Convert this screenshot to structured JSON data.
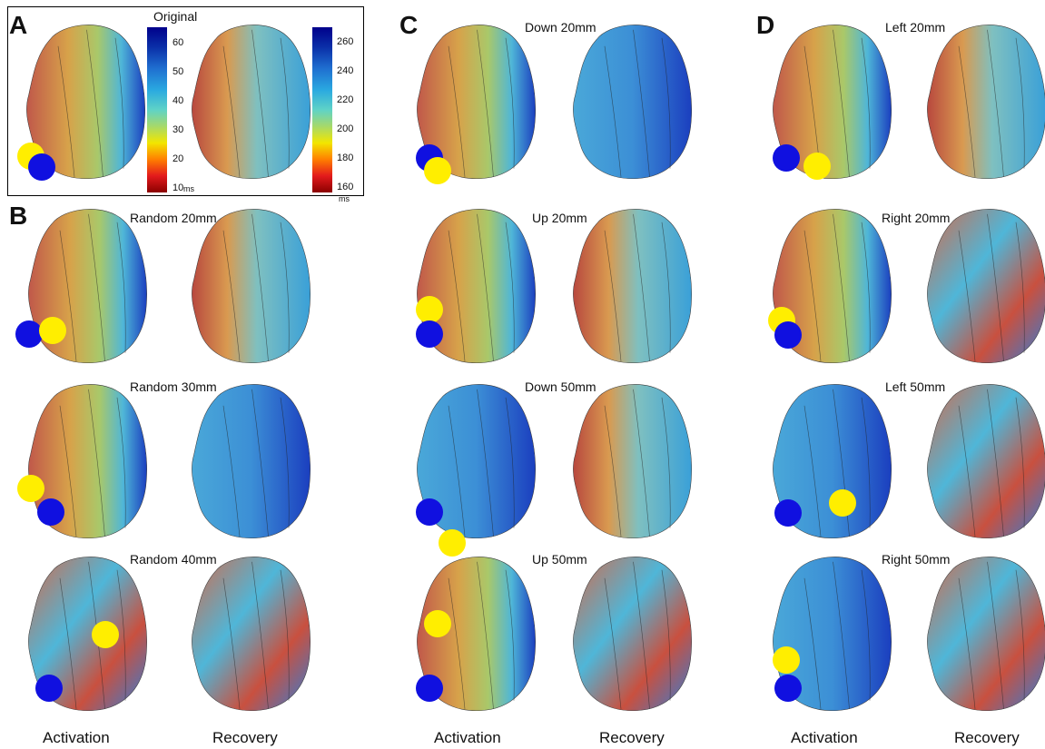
{
  "panels": {
    "A": {
      "letter": "A",
      "title": "Original"
    },
    "B": {
      "letter": "B",
      "rows": [
        "Random 20mm",
        "Random 30mm",
        "Random 40mm"
      ]
    },
    "C": {
      "letter": "C",
      "rows": [
        "Down 20mm",
        "Up 20mm",
        "Down 50mm",
        "Up 50mm"
      ]
    },
    "D": {
      "letter": "D",
      "rows": [
        "Left 20mm",
        "Right 20mm",
        "Left 50mm",
        "Right 50mm"
      ]
    }
  },
  "colorbars": {
    "activation": {
      "ticks": [
        "60",
        "50",
        "40",
        "30",
        "20",
        "10"
      ],
      "unit": "ms"
    },
    "recovery": {
      "ticks": [
        "260",
        "240",
        "220",
        "200",
        "180",
        "160"
      ],
      "unit": "ms"
    }
  },
  "columns": {
    "activation": "Activation",
    "recovery": "Recovery"
  },
  "colors": {
    "scale": [
      "#8b0000",
      "#e31a1c",
      "#ff7f00",
      "#f2e600",
      "#a6d96a",
      "#5fd3c7",
      "#2aa9e0",
      "#1f6fd0",
      "#0a2fa8",
      "#00008b"
    ],
    "marker_yellow": "#ffee00",
    "marker_blue": "#1010e0"
  }
}
